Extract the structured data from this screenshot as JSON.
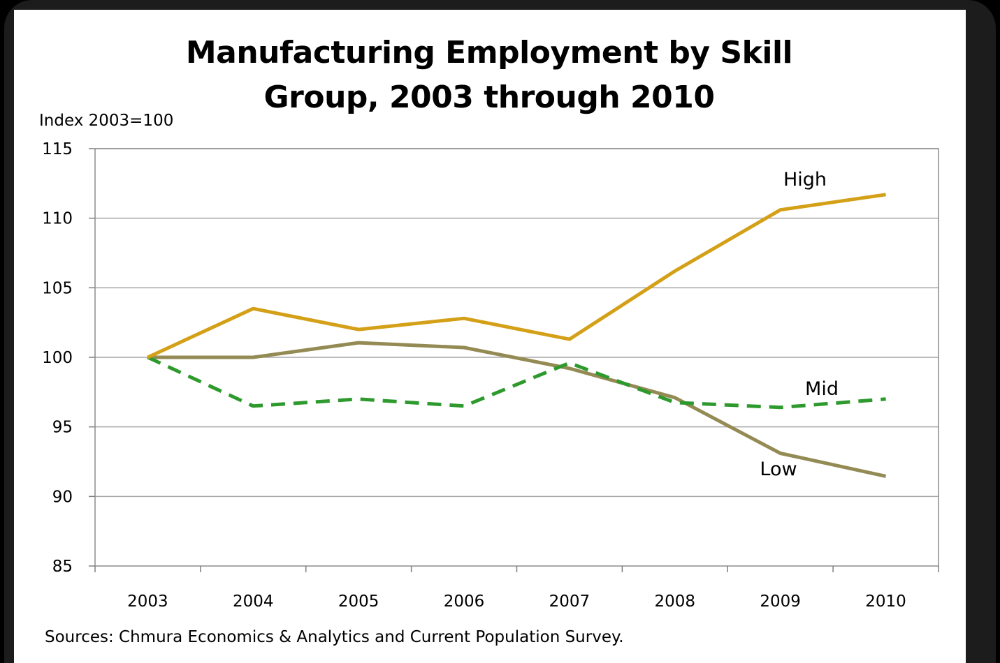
{
  "chart_data": {
    "type": "line",
    "title_line1": "Manufacturing Employment by Skill",
    "title_line2": "Group, 2003 through 2010",
    "ylabel": "Index 2003=100",
    "xlabel": "",
    "source": "Sources: Chmura Economics & Analytics and Current Population Survey.",
    "x": [
      "2003",
      "2004",
      "2005",
      "2006",
      "2007",
      "2008",
      "2009",
      "2010"
    ],
    "ylim": [
      85,
      115
    ],
    "yticks": [
      85,
      90,
      95,
      100,
      105,
      110,
      115
    ],
    "grid": true,
    "series": [
      {
        "name": "High",
        "values": [
          100,
          103.5,
          102,
          102.8,
          101.3,
          106.2,
          110.6,
          111.7
        ],
        "color": "#d4a017",
        "dash": false
      },
      {
        "name": "Low",
        "values": [
          100,
          100,
          101.05,
          100.7,
          99.2,
          97.1,
          93.1,
          91.45
        ],
        "color": "#948a54",
        "dash": false
      },
      {
        "name": "Mid",
        "values": [
          100,
          96.5,
          97,
          96.5,
          99.6,
          96.75,
          96.4,
          97
        ],
        "color": "#2e9a2e",
        "dash": true
      }
    ]
  }
}
